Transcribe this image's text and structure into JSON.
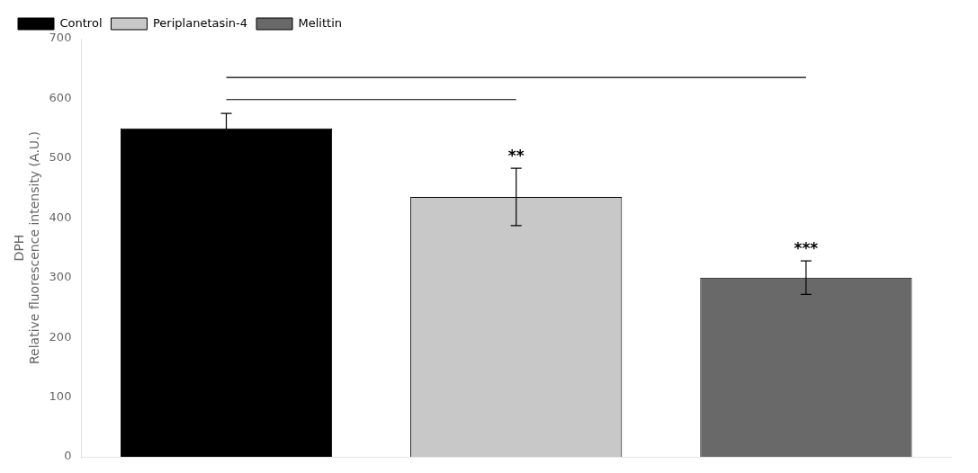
{
  "chart_data": {
    "type": "bar",
    "categories": [
      "Control",
      "Periplanetasin-4",
      "Melittin"
    ],
    "values": [
      550,
      435,
      300
    ],
    "errors": [
      25,
      48,
      28
    ],
    "colors": [
      "#000000",
      "#c8c8c8",
      "#696969"
    ],
    "ylabel": "DPH\nRelative fluorescence intensity (A.U.)",
    "ylim": [
      0,
      700
    ],
    "yticks": [
      0,
      100,
      200,
      300,
      400,
      500,
      600,
      700
    ],
    "significance": [
      null,
      "**",
      "***"
    ],
    "brackets": [
      {
        "from": "Control",
        "to": "Periplanetasin-4",
        "y": 598
      },
      {
        "from": "Control",
        "to": "Melittin",
        "y": 635
      }
    ],
    "legend": "upper left",
    "grid": false,
    "tick_labels": "y"
  }
}
